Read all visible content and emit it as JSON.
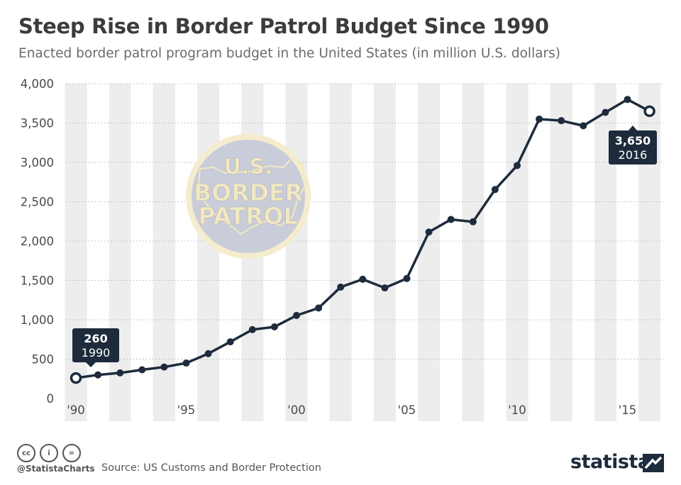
{
  "header": {
    "title": "Steep Rise in Border Patrol Budget Since 1990",
    "subtitle": "Enacted border patrol program budget in the United States (in million U.S. dollars)"
  },
  "chart_data": {
    "type": "line",
    "title": "Steep Rise in Border Patrol Budget Since 1990",
    "subtitle": "Enacted border patrol program budget in the United States (in million U.S. dollars)",
    "xlabel": "",
    "ylabel": "",
    "x": [
      1990,
      1991,
      1992,
      1993,
      1994,
      1995,
      1996,
      1997,
      1998,
      1999,
      2000,
      2001,
      2002,
      2003,
      2004,
      2005,
      2006,
      2007,
      2008,
      2009,
      2010,
      2011,
      2012,
      2013,
      2014,
      2015,
      2016
    ],
    "series": [
      {
        "name": "Border patrol budget",
        "values": [
          260,
          300,
          325,
          365,
          400,
          450,
          570,
          720,
          875,
          910,
          1055,
          1150,
          1415,
          1515,
          1405,
          1525,
          2115,
          2275,
          2245,
          2655,
          2960,
          3550,
          3530,
          3465,
          3635,
          3800,
          3650
        ]
      }
    ],
    "ylim": [
      0,
      4000
    ],
    "yticks": [
      0,
      500,
      1000,
      1500,
      2000,
      2500,
      3000,
      3500,
      4000
    ],
    "ytick_labels": [
      "0",
      "500",
      "1,000",
      "1,500",
      "2,000",
      "2,500",
      "3,000",
      "3,500",
      "4,000"
    ],
    "xtick_years": [
      1990,
      1995,
      2000,
      2005,
      2010,
      2015
    ],
    "xtick_labels": [
      "'90",
      "'95",
      "'00",
      "'05",
      "'10",
      "'15"
    ],
    "grid": true,
    "annotations": [
      {
        "year": 1990,
        "value_text": "260",
        "year_text": "1990"
      },
      {
        "year": 2016,
        "value_text": "3,650",
        "year_text": "2016"
      }
    ],
    "watermark": {
      "line1": "U.S.",
      "line2": "BORDER",
      "line3": "PATROL"
    }
  },
  "colors": {
    "line": "#1d2b3c",
    "stripe": "#ededed",
    "callout": "#1d2b3c",
    "seal_fill": "#c9ccd9",
    "seal_ring": "#f4eccd",
    "seal_text": "#f1e8c4",
    "axis_text": "#4a4a4a"
  },
  "footer": {
    "license_icons": [
      "creative-commons-icon",
      "attribution-icon",
      "no-derivatives-icon"
    ],
    "license_glyphs": [
      "cc",
      "i",
      "="
    ],
    "handle": "@StatistaCharts",
    "source": "Source: US Customs and Border Protection",
    "brand": "statista"
  }
}
